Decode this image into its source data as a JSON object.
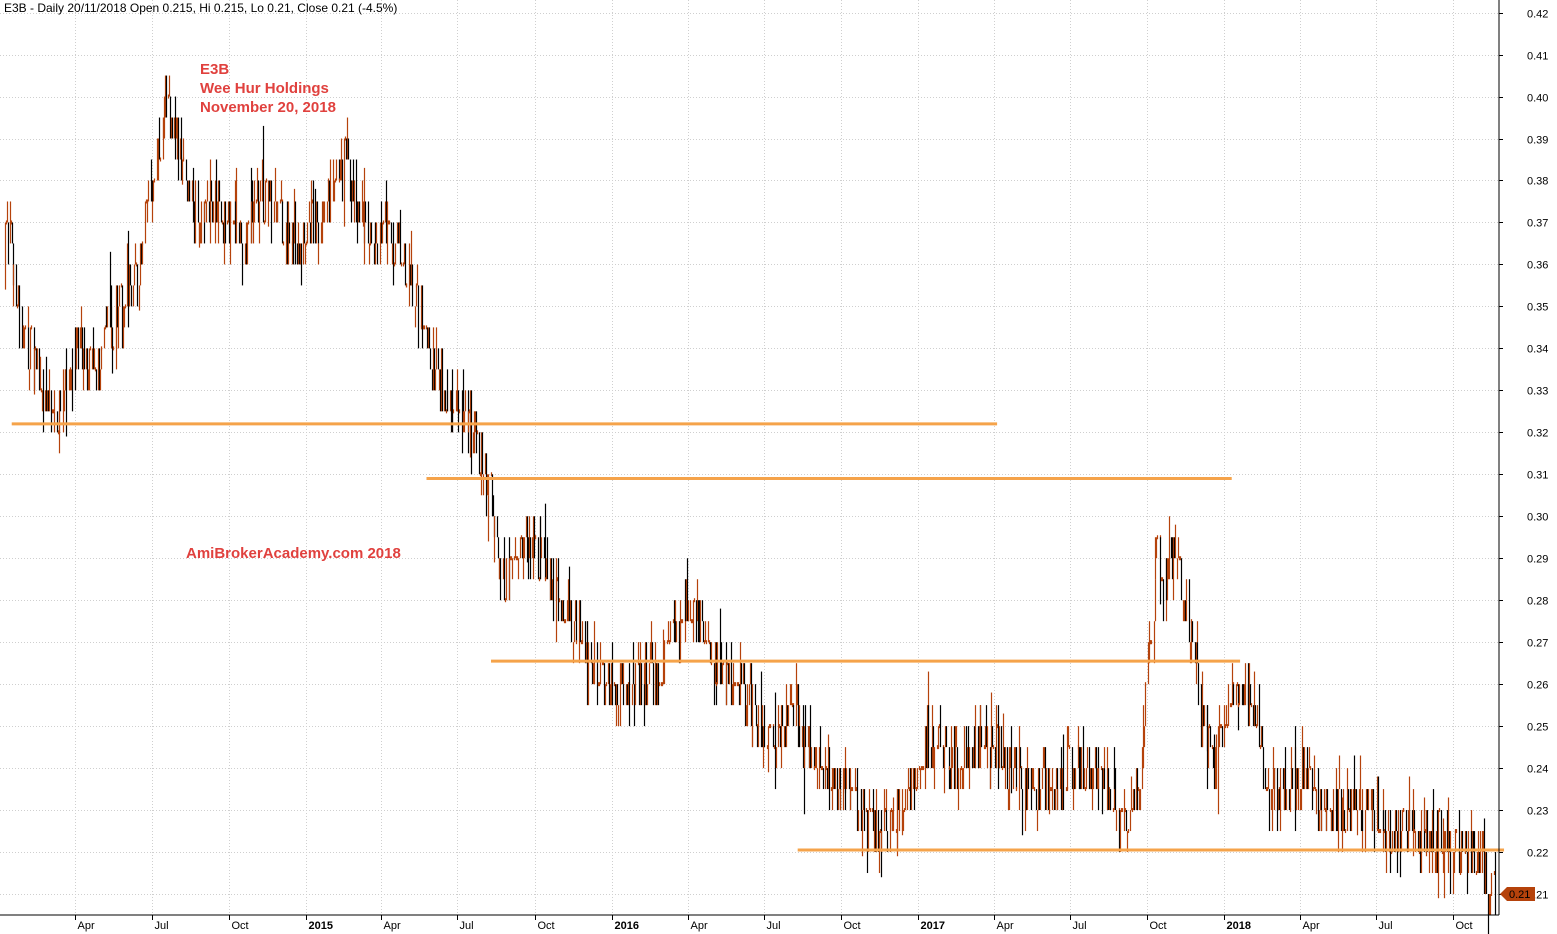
{
  "header": "E3B - Daily 20/11/2018 Open 0.215, Hi 0.215, Lo 0.21, Close 0.21 (-4.5%)",
  "annotations": {
    "ticker": "E3B",
    "company": "Wee Hur Holdings",
    "date": "November 20, 2018",
    "watermark": "AmiBrokerAcademy.com  2018"
  },
  "colors": {
    "bar_up": "#b5420b",
    "bar_down": "#000000",
    "level": "#f5a34a",
    "grid": "#cfcfcf",
    "annotation": "#e0413e",
    "last_price_tag": "#b5420b"
  },
  "chart_data": {
    "type": "ohlc-bar",
    "x_axis": {
      "range": [
        "2014-01-01",
        "2018-11-25"
      ],
      "ticks": [
        {
          "date": "2014-04-01",
          "label": "Apr",
          "bold": false
        },
        {
          "date": "2014-07-01",
          "label": "Jul",
          "bold": false
        },
        {
          "date": "2014-10-01",
          "label": "Oct",
          "bold": false
        },
        {
          "date": "2015-01-01",
          "label": "2015",
          "bold": true
        },
        {
          "date": "2015-04-01",
          "label": "Apr",
          "bold": false
        },
        {
          "date": "2015-07-01",
          "label": "Jul",
          "bold": false
        },
        {
          "date": "2015-10-01",
          "label": "Oct",
          "bold": false
        },
        {
          "date": "2016-01-01",
          "label": "2016",
          "bold": true
        },
        {
          "date": "2016-04-01",
          "label": "Apr",
          "bold": false
        },
        {
          "date": "2016-07-01",
          "label": "Jul",
          "bold": false
        },
        {
          "date": "2016-10-01",
          "label": "Oct",
          "bold": false
        },
        {
          "date": "2017-01-01",
          "label": "2017",
          "bold": true
        },
        {
          "date": "2017-04-01",
          "label": "Apr",
          "bold": false
        },
        {
          "date": "2017-07-01",
          "label": "Jul",
          "bold": false
        },
        {
          "date": "2017-10-01",
          "label": "Oct",
          "bold": false
        },
        {
          "date": "2018-01-01",
          "label": "2018",
          "bold": true
        },
        {
          "date": "2018-04-01",
          "label": "Apr",
          "bold": false
        },
        {
          "date": "2018-07-01",
          "label": "Jul",
          "bold": false
        },
        {
          "date": "2018-10-01",
          "label": "Oct",
          "bold": false
        }
      ]
    },
    "y_axis": {
      "range": [
        0.205,
        0.423
      ],
      "ticks": [
        "0.21",
        "0.22",
        "0.23",
        "0.24",
        "0.25",
        "0.26",
        "0.27",
        "0.28",
        "0.29",
        "0.30",
        "0.31",
        "0.32",
        "0.33",
        "0.34",
        "0.35",
        "0.36",
        "0.37",
        "0.38",
        "0.39",
        "0.40",
        "0.41",
        "0.42"
      ]
    },
    "grid": true,
    "price_path": [
      [
        "2014-01-01",
        0.36
      ],
      [
        "2014-01-08",
        0.375
      ],
      [
        "2014-01-20",
        0.35
      ],
      [
        "2014-02-05",
        0.34
      ],
      [
        "2014-02-20",
        0.33
      ],
      [
        "2014-03-05",
        0.325
      ],
      [
        "2014-03-15",
        0.33
      ],
      [
        "2014-04-01",
        0.34
      ],
      [
        "2014-04-20",
        0.335
      ],
      [
        "2014-05-10",
        0.345
      ],
      [
        "2014-05-25",
        0.35
      ],
      [
        "2014-06-10",
        0.355
      ],
      [
        "2014-06-20",
        0.365
      ],
      [
        "2014-07-01",
        0.38
      ],
      [
        "2014-07-10",
        0.39
      ],
      [
        "2014-07-18",
        0.405
      ],
      [
        "2014-07-25",
        0.395
      ],
      [
        "2014-08-10",
        0.38
      ],
      [
        "2014-08-25",
        0.37
      ],
      [
        "2014-09-10",
        0.375
      ],
      [
        "2014-10-01",
        0.37
      ],
      [
        "2014-10-20",
        0.365
      ],
      [
        "2014-11-10",
        0.375
      ],
      [
        "2014-12-01",
        0.37
      ],
      [
        "2014-12-20",
        0.365
      ],
      [
        "2015-01-10",
        0.37
      ],
      [
        "2015-01-25",
        0.375
      ],
      [
        "2015-02-10",
        0.38
      ],
      [
        "2015-02-20",
        0.39
      ],
      [
        "2015-03-01",
        0.37
      ],
      [
        "2015-03-20",
        0.365
      ],
      [
        "2015-04-10",
        0.37
      ],
      [
        "2015-05-01",
        0.36
      ],
      [
        "2015-05-20",
        0.345
      ],
      [
        "2015-06-10",
        0.33
      ],
      [
        "2015-07-01",
        0.325
      ],
      [
        "2015-07-20",
        0.32
      ],
      [
        "2015-08-05",
        0.31
      ],
      [
        "2015-08-15",
        0.3
      ],
      [
        "2015-08-25",
        0.285
      ],
      [
        "2015-09-10",
        0.29
      ],
      [
        "2015-09-25",
        0.295
      ],
      [
        "2015-10-10",
        0.29
      ],
      [
        "2015-10-25",
        0.28
      ],
      [
        "2015-11-10",
        0.275
      ],
      [
        "2015-11-25",
        0.27
      ],
      [
        "2015-12-10",
        0.265
      ],
      [
        "2015-12-25",
        0.26
      ],
      [
        "2016-01-15",
        0.26
      ],
      [
        "2016-02-10",
        0.26
      ],
      [
        "2016-03-01",
        0.265
      ],
      [
        "2016-03-20",
        0.275
      ],
      [
        "2016-04-10",
        0.28
      ],
      [
        "2016-04-25",
        0.265
      ],
      [
        "2016-05-15",
        0.26
      ],
      [
        "2016-06-05",
        0.26
      ],
      [
        "2016-06-25",
        0.25
      ],
      [
        "2016-07-10",
        0.245
      ],
      [
        "2016-07-25",
        0.25
      ],
      [
        "2016-08-05",
        0.255
      ],
      [
        "2016-08-20",
        0.245
      ],
      [
        "2016-09-10",
        0.24
      ],
      [
        "2016-09-25",
        0.235
      ],
      [
        "2016-10-10",
        0.235
      ],
      [
        "2016-10-25",
        0.23
      ],
      [
        "2016-11-10",
        0.225
      ],
      [
        "2016-11-25",
        0.225
      ],
      [
        "2016-12-10",
        0.23
      ],
      [
        "2016-12-25",
        0.235
      ],
      [
        "2017-01-10",
        0.245
      ],
      [
        "2017-01-25",
        0.245
      ],
      [
        "2017-02-15",
        0.24
      ],
      [
        "2017-03-10",
        0.245
      ],
      [
        "2017-04-01",
        0.245
      ],
      [
        "2017-04-25",
        0.24
      ],
      [
        "2017-05-15",
        0.235
      ],
      [
        "2017-06-10",
        0.235
      ],
      [
        "2017-07-05",
        0.24
      ],
      [
        "2017-07-25",
        0.24
      ],
      [
        "2017-08-15",
        0.235
      ],
      [
        "2017-09-05",
        0.23
      ],
      [
        "2017-09-20",
        0.235
      ],
      [
        "2017-10-05",
        0.27
      ],
      [
        "2017-10-12",
        0.29
      ],
      [
        "2017-10-20",
        0.285
      ],
      [
        "2017-11-05",
        0.29
      ],
      [
        "2017-11-20",
        0.275
      ],
      [
        "2017-12-05",
        0.255
      ],
      [
        "2017-12-20",
        0.24
      ],
      [
        "2018-01-05",
        0.255
      ],
      [
        "2018-01-20",
        0.26
      ],
      [
        "2018-02-05",
        0.255
      ],
      [
        "2018-02-25",
        0.235
      ],
      [
        "2018-03-15",
        0.235
      ],
      [
        "2018-04-05",
        0.24
      ],
      [
        "2018-04-25",
        0.23
      ],
      [
        "2018-05-20",
        0.23
      ],
      [
        "2018-06-15",
        0.23
      ],
      [
        "2018-07-05",
        0.225
      ],
      [
        "2018-07-25",
        0.225
      ],
      [
        "2018-08-20",
        0.225
      ],
      [
        "2018-09-15",
        0.225
      ],
      [
        "2018-10-05",
        0.22
      ],
      [
        "2018-10-20",
        0.22
      ],
      [
        "2018-11-05",
        0.215
      ],
      [
        "2018-11-20",
        0.21
      ]
    ],
    "levels": [
      {
        "price": 0.322,
        "from": "2014-01-15",
        "to": "2017-04-05"
      },
      {
        "price": 0.309,
        "from": "2015-05-25",
        "to": "2018-01-10"
      },
      {
        "price": 0.2655,
        "from": "2015-08-10",
        "to": "2018-01-20"
      },
      {
        "price": 0.2205,
        "from": "2016-08-10",
        "to": "2018-12-01"
      }
    ],
    "last_price": {
      "label": "0.21",
      "value": 0.21
    }
  }
}
